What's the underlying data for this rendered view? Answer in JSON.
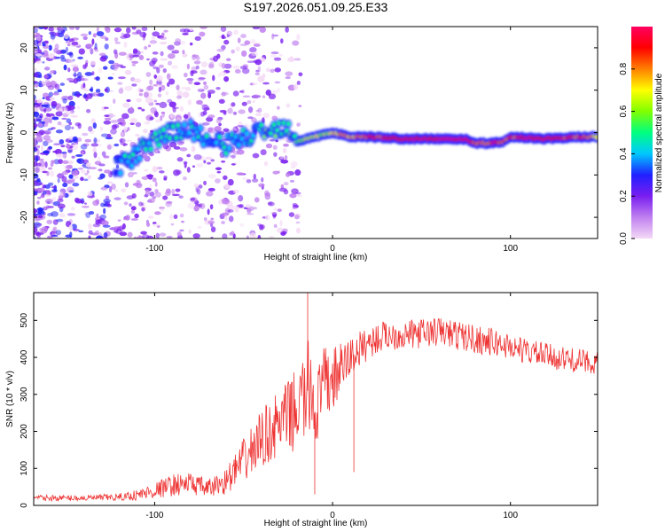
{
  "figure": {
    "title": "S197.2026.051.09.25.E33"
  },
  "chart_data": [
    {
      "type": "heatmap",
      "name": "spectrogram",
      "xlabel": "Height of straight line (km)",
      "ylabel": "Frequency (Hz)",
      "xlim": [
        -168,
        149
      ],
      "ylim": [
        -25,
        25
      ],
      "xticks": [
        -100,
        0,
        100
      ],
      "yticks": [
        -20,
        -10,
        0,
        10,
        20
      ],
      "colorbar": {
        "label": "Normalized spectral amplitude",
        "range": [
          0,
          1
        ],
        "ticks": [
          "0.0",
          "0.2",
          "0.4",
          "0.6",
          "0.8"
        ],
        "colors": [
          "#f4d9f6",
          "#c080f0",
          "#7a1ef0",
          "#2020ff",
          "#00c8ff",
          "#00ff80",
          "#80ff00",
          "#ffff00",
          "#ff8000",
          "#ff0000",
          "#ff0060"
        ]
      },
      "signal_track": {
        "x": [
          -120,
          -110,
          -100,
          -90,
          -80,
          -70,
          -60,
          -50,
          -40,
          -30,
          -25,
          -20,
          -10,
          0,
          10,
          20,
          40,
          60,
          75,
          80,
          90,
          97,
          100,
          120,
          140,
          149
        ],
        "freq_hz": [
          -8,
          -5,
          -2,
          0,
          1,
          -2,
          -3,
          -1,
          0,
          1,
          2,
          -2,
          -1,
          0,
          -1,
          -1,
          -1.5,
          -1.5,
          -1.5,
          -2.5,
          -2.5,
          -2,
          -1,
          -1.5,
          -1,
          -1
        ],
        "amplitude": [
          0.4,
          0.45,
          0.5,
          0.5,
          0.45,
          0.4,
          0.45,
          0.45,
          0.5,
          0.55,
          0.5,
          0.6,
          0.65,
          0.7,
          0.8,
          0.85,
          0.95,
          0.95,
          0.95,
          0.85,
          0.9,
          0.85,
          0.9,
          0.95,
          0.85,
          0.7
        ]
      }
    },
    {
      "type": "line",
      "name": "snr",
      "xlabel": "Height of straight line (km)",
      "ylabel": "SNR (10 * v/v)",
      "xlim": [
        -168,
        149
      ],
      "ylim": [
        0,
        575
      ],
      "xticks": [
        -100,
        0,
        100
      ],
      "yticks": [
        0,
        100,
        200,
        300,
        400,
        500
      ],
      "color": "#ee3333",
      "envelope": {
        "x": [
          -168,
          -140,
          -120,
          -110,
          -100,
          -90,
          -80,
          -70,
          -60,
          -50,
          -40,
          -30,
          -20,
          -15,
          -12,
          -10,
          -5,
          0,
          5,
          10,
          15,
          20,
          30,
          40,
          50,
          60,
          70,
          80,
          90,
          100,
          110,
          120,
          130,
          140,
          149
        ],
        "mean": [
          20,
          20,
          22,
          28,
          40,
          55,
          60,
          45,
          65,
          120,
          180,
          220,
          260,
          300,
          330,
          250,
          320,
          340,
          370,
          400,
          420,
          440,
          460,
          460,
          465,
          470,
          460,
          450,
          440,
          430,
          415,
          405,
          395,
          390,
          385
        ],
        "spread": [
          8,
          8,
          10,
          15,
          22,
          30,
          30,
          25,
          35,
          60,
          80,
          90,
          110,
          140,
          140,
          100,
          110,
          90,
          70,
          60,
          50,
          45,
          40,
          40,
          40,
          40,
          40,
          40,
          38,
          36,
          35,
          34,
          33,
          32,
          30
        ]
      },
      "spikes": [
        {
          "x": -14,
          "y": 575
        },
        {
          "x": -10,
          "y": 30
        },
        {
          "x": 12,
          "y": 90
        }
      ]
    }
  ]
}
